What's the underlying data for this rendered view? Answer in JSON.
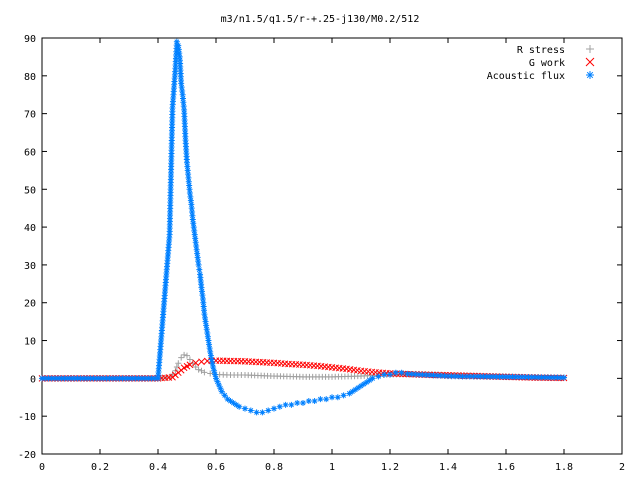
{
  "chart_data": {
    "type": "scatter",
    "title": "m3/n1.5/q1.5/r-+.25-j130/M0.2/512",
    "xlabel": "",
    "ylabel": "",
    "xlim": [
      0,
      2
    ],
    "ylim": [
      -20,
      90
    ],
    "x_ticks": [
      "0",
      "0.2",
      "0.4",
      "0.6",
      "0.8",
      "1",
      "1.2",
      "1.4",
      "1.6",
      "1.8",
      "2"
    ],
    "y_ticks": [
      "-20",
      "-10",
      "0",
      "10",
      "20",
      "30",
      "40",
      "50",
      "60",
      "70",
      "80",
      "90"
    ],
    "grid": false,
    "legend_position": "top-right",
    "series": [
      {
        "name": "R stress",
        "marker": "+",
        "color": "#a0a0a0",
        "x": [
          0.0,
          0.1,
          0.2,
          0.3,
          0.4,
          0.44,
          0.46,
          0.47,
          0.48,
          0.49,
          0.5,
          0.51,
          0.52,
          0.53,
          0.54,
          0.55,
          0.56,
          0.58,
          0.6,
          0.65,
          0.7,
          0.8,
          0.9,
          1.0,
          1.1,
          1.2,
          1.3,
          1.4,
          1.5,
          1.6,
          1.7,
          1.8
        ],
        "y": [
          0.0,
          0.0,
          0.0,
          0.0,
          0.0,
          0.2,
          2.0,
          4.0,
          5.5,
          6.2,
          6.0,
          5.0,
          4.0,
          3.0,
          2.3,
          2.0,
          1.6,
          1.3,
          1.0,
          0.9,
          0.9,
          0.6,
          0.4,
          0.4,
          0.6,
          1.0,
          1.2,
          0.9,
          0.7,
          0.5,
          0.3,
          0.2
        ]
      },
      {
        "name": "G work",
        "marker": "x",
        "color": "#ff0000",
        "x": [
          0.0,
          0.1,
          0.2,
          0.3,
          0.4,
          0.45,
          0.47,
          0.49,
          0.51,
          0.53,
          0.55,
          0.57,
          0.6,
          0.65,
          0.7,
          0.75,
          0.8,
          0.85,
          0.9,
          0.95,
          1.0,
          1.05,
          1.1,
          1.15,
          1.2,
          1.3,
          1.4,
          1.5,
          1.6,
          1.7,
          1.8
        ],
        "y": [
          0.0,
          0.0,
          0.0,
          0.0,
          0.0,
          0.3,
          1.5,
          2.8,
          3.6,
          4.1,
          4.4,
          4.6,
          4.7,
          4.6,
          4.5,
          4.3,
          4.1,
          3.8,
          3.6,
          3.3,
          2.9,
          2.5,
          2.0,
          1.6,
          1.3,
          1.0,
          0.8,
          0.6,
          0.4,
          0.2,
          0.1
        ]
      },
      {
        "name": "Acoustic flux",
        "marker": "*",
        "color": "#0080ff",
        "x": [
          0.0,
          0.1,
          0.2,
          0.3,
          0.4,
          0.44,
          0.45,
          0.46,
          0.465,
          0.47,
          0.475,
          0.48,
          0.485,
          0.49,
          0.495,
          0.5,
          0.505,
          0.51,
          0.515,
          0.52,
          0.525,
          0.53,
          0.535,
          0.54,
          0.545,
          0.55,
          0.555,
          0.56,
          0.57,
          0.58,
          0.59,
          0.6,
          0.62,
          0.64,
          0.66,
          0.68,
          0.7,
          0.72,
          0.74,
          0.76,
          0.78,
          0.8,
          0.82,
          0.84,
          0.86,
          0.88,
          0.9,
          0.92,
          0.94,
          0.96,
          0.98,
          1.0,
          1.02,
          1.04,
          1.06,
          1.08,
          1.1,
          1.12,
          1.14,
          1.16,
          1.18,
          1.2,
          1.22,
          1.24,
          1.26,
          1.3,
          1.35,
          1.4,
          1.45,
          1.5,
          1.6,
          1.7,
          1.8
        ],
        "y": [
          0.0,
          0.0,
          0.0,
          0.0,
          0.0,
          38.0,
          71.5,
          82.0,
          89.0,
          88.0,
          85.0,
          78.0,
          75.0,
          71.0,
          63.0,
          57.0,
          53.0,
          49.0,
          46.0,
          42.0,
          39.0,
          36.0,
          33.0,
          30.0,
          27.5,
          24.0,
          21.0,
          17.0,
          12.0,
          7.0,
          3.0,
          0.0,
          -3.5,
          -5.5,
          -6.5,
          -7.5,
          -8.0,
          -8.5,
          -9.0,
          -9.0,
          -8.5,
          -8.0,
          -7.5,
          -7.0,
          -7.0,
          -6.5,
          -6.5,
          -6.0,
          -6.0,
          -5.5,
          -5.5,
          -5.0,
          -5.0,
          -4.5,
          -4.0,
          -3.0,
          -2.0,
          -1.0,
          0.0,
          0.5,
          1.0,
          1.0,
          1.5,
          1.5,
          1.2,
          1.0,
          0.8,
          0.6,
          0.5,
          0.5,
          0.4,
          0.3,
          0.2
        ]
      }
    ]
  }
}
